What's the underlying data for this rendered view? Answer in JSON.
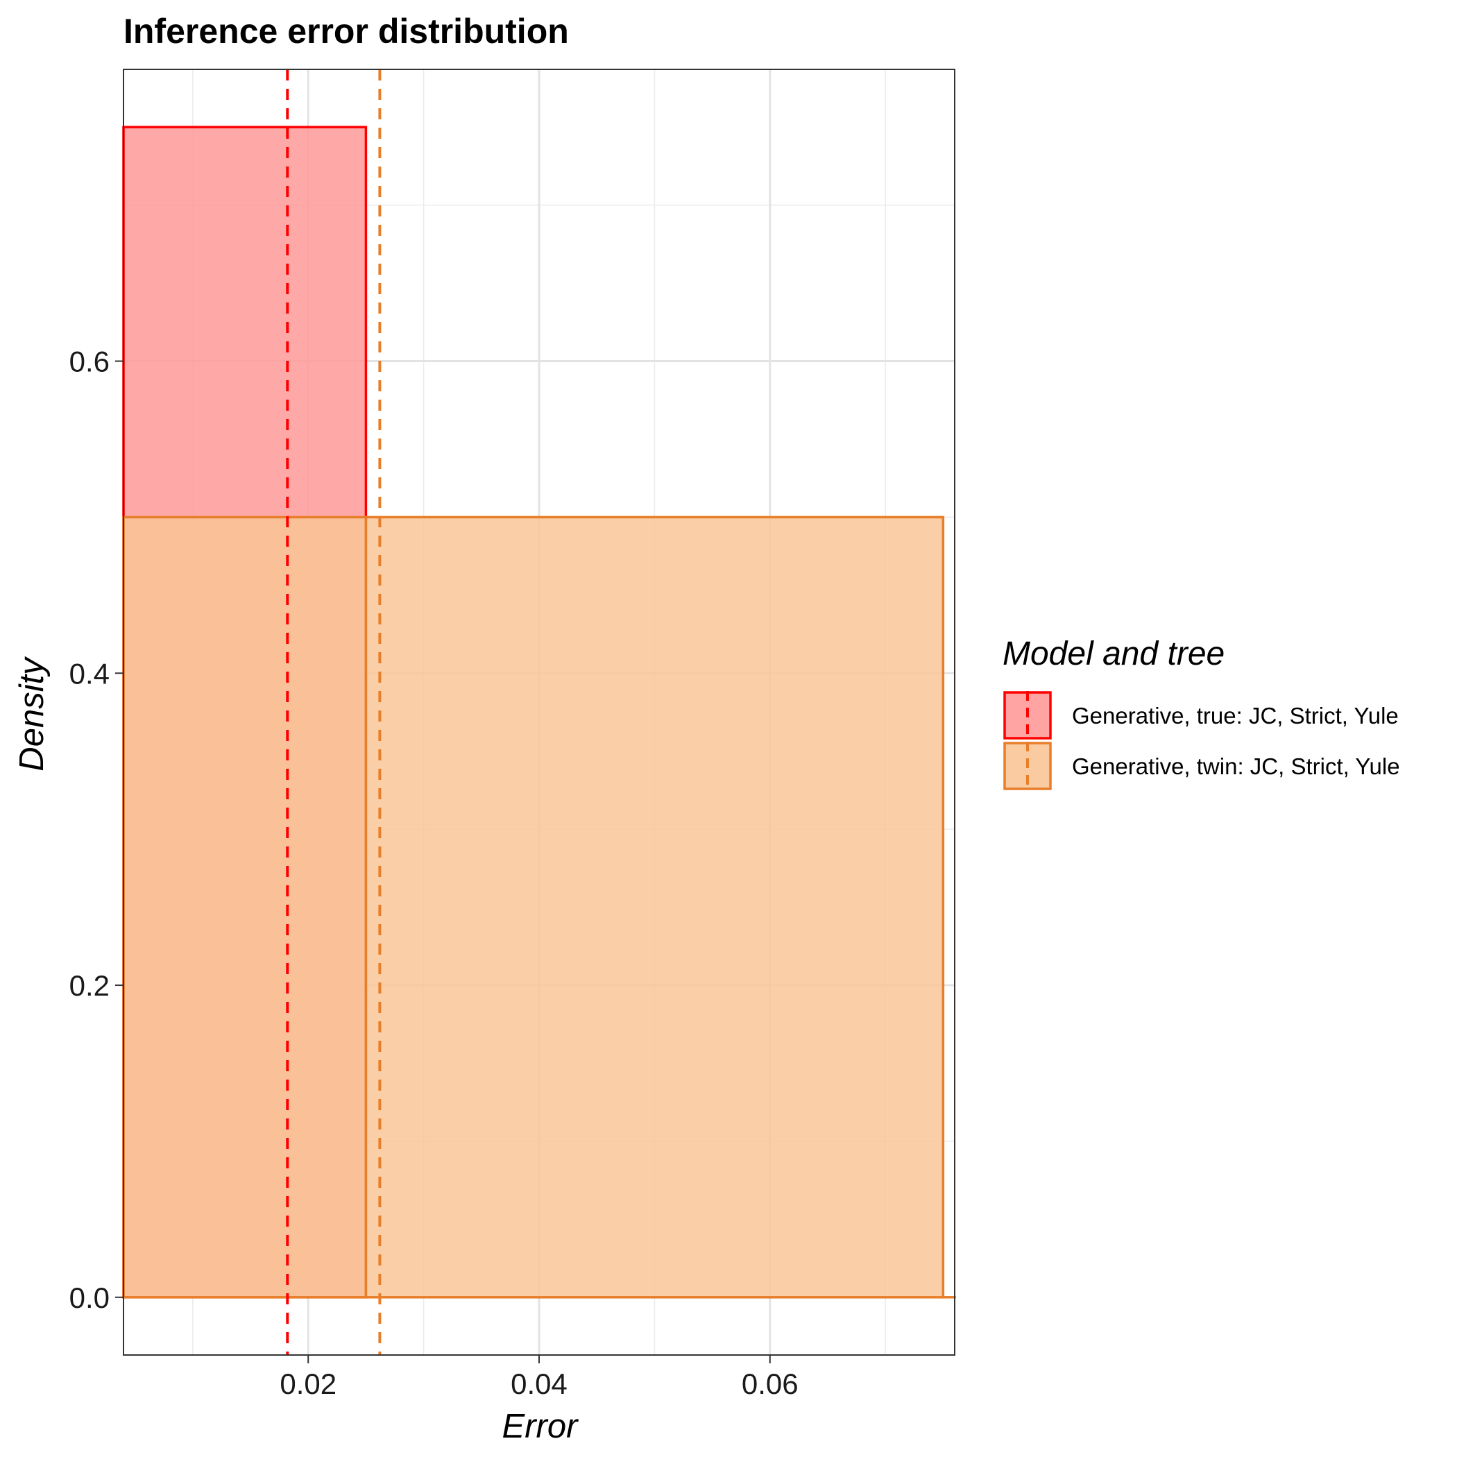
{
  "chart_data": {
    "type": "histogram",
    "title": "Inference error distribution",
    "xlabel": "Error",
    "ylabel": "Density",
    "xlim": [
      0.004,
      0.076
    ],
    "ylim": [
      -0.037,
      0.787
    ],
    "x_ticks": [
      0.02,
      0.04,
      0.06
    ],
    "x_tick_labels": [
      "0.02",
      "0.04",
      "0.06"
    ],
    "y_ticks": [
      0.0,
      0.2,
      0.4,
      0.6
    ],
    "y_tick_labels": [
      "0.0",
      "0.2",
      "0.4",
      "0.6"
    ],
    "grid": true,
    "legend_position": "right",
    "legend_title": "Model and tree",
    "series": [
      {
        "name": "Generative, true: JC, Strict, Yule",
        "color": "#ff0000",
        "fill": "#ff9999",
        "bins": [
          {
            "x0": 0.004,
            "x1": 0.025,
            "density": 0.75
          }
        ],
        "mean": 0.0182
      },
      {
        "name": "Generative, twin: JC, Strict, Yule",
        "color": "#e87e2a",
        "fill": "#f9c597",
        "bins": [
          {
            "x0": 0.004,
            "x1": 0.025,
            "density": 0.5
          },
          {
            "x0": 0.025,
            "x1": 0.075,
            "density": 0.5
          },
          {
            "x0": 0.075,
            "x1": 0.076,
            "density": 0.0
          }
        ],
        "mean": 0.0262
      }
    ]
  }
}
